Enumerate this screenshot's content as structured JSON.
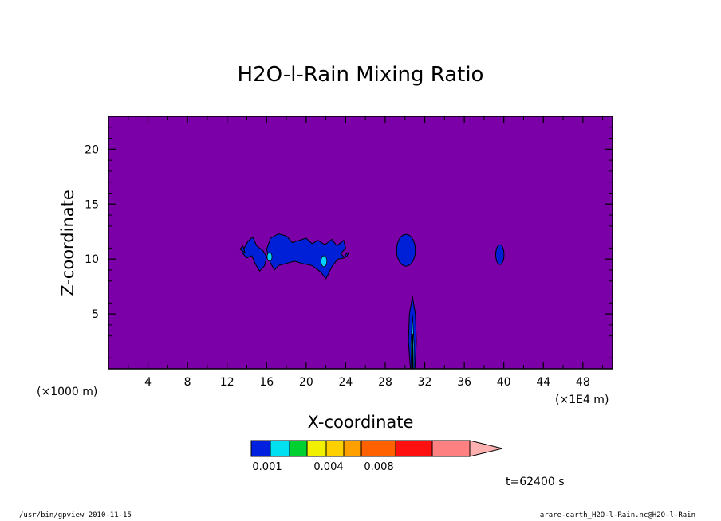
{
  "chart_data": {
    "type": "heatmap",
    "title": "H2O-l-Rain Mixing Ratio",
    "xlabel": "X-coordinate",
    "ylabel": "Z-coordinate",
    "x_units": "(×1E4 m)",
    "y_units": "(×1000 m)",
    "x_ticks": [
      4,
      8,
      12,
      16,
      20,
      24,
      28,
      32,
      36,
      40,
      44,
      48
    ],
    "y_ticks": [
      5,
      10,
      15,
      20
    ],
    "xlim": [
      0,
      51
    ],
    "ylim": [
      0,
      23
    ],
    "grid": false,
    "background_color": "#7b00a8",
    "contour_color": "#0020d8",
    "inner_contour_color": "#00d0ff",
    "line_color": "#000000",
    "regions": [
      {
        "name": "cloud band left",
        "x": [
          13.5,
          24
        ],
        "z": [
          8,
          12.3
        ],
        "level_min": 0.001
      },
      {
        "name": "isolated cell 1",
        "x": [
          29.2,
          31
        ],
        "z": [
          9.3,
          12.3
        ],
        "level_min": 0.001
      },
      {
        "name": "narrow column",
        "x": [
          30.3,
          31.2
        ],
        "z": [
          0,
          6.6
        ],
        "level_min": 0.001
      },
      {
        "name": "isolated cell 2",
        "x": [
          39.2,
          40
        ],
        "z": [
          9.5,
          11.4
        ],
        "level_min": 0.001
      }
    ],
    "colorbar": {
      "labels": [
        "0.001",
        "0.004",
        "0.008"
      ],
      "colors": [
        "#0020e0",
        "#00e0f0",
        "#00d030",
        "#f0f000",
        "#ffd000",
        "#ffa000",
        "#ff6000",
        "#ff1010",
        "#ff8080",
        "#ffb0b0"
      ],
      "extend": "max"
    },
    "time_label": "t=62400 s"
  },
  "footer": {
    "left": "/usr/bin/gpview  2010-11-15",
    "right": "arare-earth_H2O-l-Rain.nc@H2O-l-Rain"
  }
}
